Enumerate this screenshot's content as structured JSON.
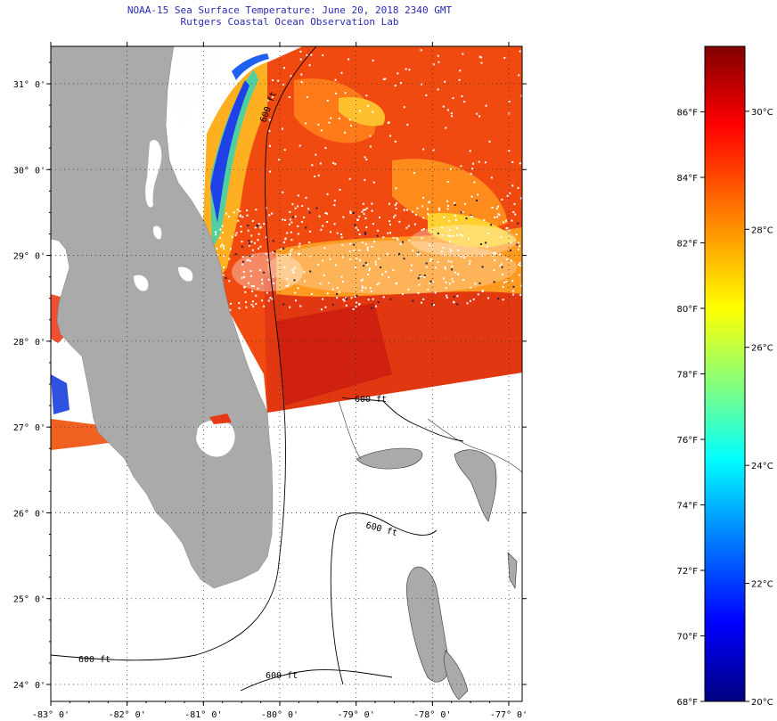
{
  "header": {
    "title_line1": "NOAA-15 Sea Surface Temperature:  June 20, 2018 2340 GMT",
    "title_line2": "Rutgers Coastal Ocean Observation Lab"
  },
  "map": {
    "lon_ticks": [
      {
        "lon": -83,
        "label": "-83° 0'"
      },
      {
        "lon": -82,
        "label": "-82° 0'"
      },
      {
        "lon": -81,
        "label": "-81° 0'"
      },
      {
        "lon": -80,
        "label": "-80° 0'"
      },
      {
        "lon": -79,
        "label": "-79° 0'"
      },
      {
        "lon": -78,
        "label": "-78° 0'"
      },
      {
        "lon": -77,
        "label": "-77° 0'"
      }
    ],
    "lat_ticks": [
      {
        "lat": 31,
        "label": "31° 0'"
      },
      {
        "lat": 30,
        "label": "30° 0'"
      },
      {
        "lat": 29,
        "label": "29° 0'"
      },
      {
        "lat": 28,
        "label": "28° 0'"
      },
      {
        "lat": 27,
        "label": "27° 0'"
      },
      {
        "lat": 26,
        "label": "26° 0'"
      },
      {
        "lat": 25,
        "label": "25° 0'"
      },
      {
        "lat": 24,
        "label": "24° 0'"
      }
    ],
    "contour_labels": {
      "c1": "600 ft",
      "c2": "600 ft",
      "c3": "600 ft",
      "c4": "600 ft",
      "c5": "600 ft"
    },
    "colors": {
      "land": "#aaaaaa",
      "sst_warm": "#f04a10",
      "sst_hot": "#e02810",
      "sst_mid": "#ff8a18",
      "sst_cool": "#ffd020",
      "sst_green": "#40d090",
      "sst_blue": "#2030e0"
    }
  },
  "colorbar": {
    "f_labels": [
      "86°F",
      "84°F",
      "82°F",
      "80°F",
      "78°F",
      "76°F",
      "74°F",
      "72°F",
      "70°F",
      "68°F"
    ],
    "c_labels": [
      "30°C",
      "28°C",
      "26°C",
      "24°C",
      "22°C",
      "20°C"
    ],
    "range_f": [
      68,
      88
    ],
    "range_c": [
      20,
      31.1
    ],
    "gradient": [
      "#000080",
      "#0000ff",
      "#0080ff",
      "#00ffff",
      "#80ff80",
      "#ffff00",
      "#ff8000",
      "#ff0000",
      "#800000"
    ]
  }
}
